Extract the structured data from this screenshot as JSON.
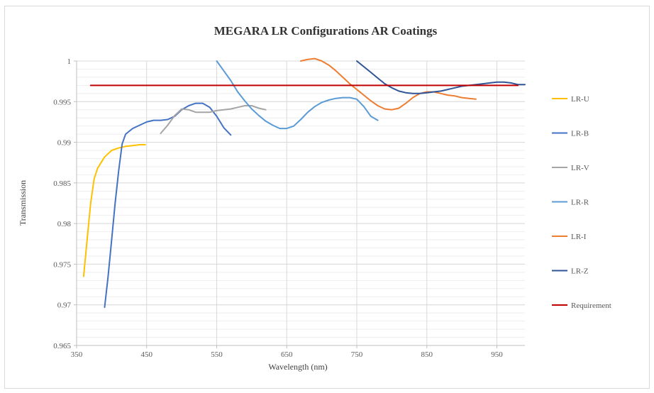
{
  "chart_data": {
    "type": "line",
    "title": "MEGARA LR Configurations AR Coatings",
    "xlabel": "Wavelength (nm)",
    "ylabel": "Transmission",
    "xlim": [
      350,
      990
    ],
    "ylim": [
      0.965,
      1.0
    ],
    "x_ticks": [
      "350",
      "450",
      "550",
      "650",
      "750",
      "850",
      "950"
    ],
    "y_ticks": [
      "0.965",
      "0.97",
      "0.975",
      "0.98",
      "0.985",
      "0.99",
      "0.995",
      "1"
    ],
    "grid": true,
    "legend_position": "right",
    "series": [
      {
        "name": "LR-U",
        "color": "#ffc000",
        "points": [
          [
            360,
            0.9735
          ],
          [
            365,
            0.978
          ],
          [
            370,
            0.9825
          ],
          [
            375,
            0.9855
          ],
          [
            380,
            0.9868
          ],
          [
            390,
            0.9882
          ],
          [
            400,
            0.989
          ],
          [
            410,
            0.9893
          ],
          [
            420,
            0.9895
          ],
          [
            430,
            0.9896
          ],
          [
            440,
            0.9897
          ],
          [
            448,
            0.9897
          ]
        ]
      },
      {
        "name": "LR-B",
        "color": "#4472c4",
        "points": [
          [
            390,
            0.9697
          ],
          [
            395,
            0.9735
          ],
          [
            400,
            0.978
          ],
          [
            405,
            0.9825
          ],
          [
            410,
            0.9865
          ],
          [
            415,
            0.9898
          ],
          [
            420,
            0.991
          ],
          [
            430,
            0.9917
          ],
          [
            440,
            0.9921
          ],
          [
            450,
            0.9925
          ],
          [
            460,
            0.9927
          ],
          [
            470,
            0.9927
          ],
          [
            480,
            0.9928
          ],
          [
            490,
            0.9932
          ],
          [
            500,
            0.994
          ],
          [
            510,
            0.9945
          ],
          [
            520,
            0.9948
          ],
          [
            530,
            0.9948
          ],
          [
            540,
            0.9943
          ],
          [
            550,
            0.9932
          ],
          [
            560,
            0.9918
          ],
          [
            570,
            0.9909
          ]
        ]
      },
      {
        "name": "LR-V",
        "color": "#a5a5a5",
        "points": [
          [
            470,
            0.9911
          ],
          [
            480,
            0.9921
          ],
          [
            490,
            0.9933
          ],
          [
            500,
            0.9941
          ],
          [
            510,
            0.994
          ],
          [
            520,
            0.9937
          ],
          [
            530,
            0.9937
          ],
          [
            540,
            0.9937
          ],
          [
            550,
            0.9939
          ],
          [
            560,
            0.994
          ],
          [
            570,
            0.9941
          ],
          [
            580,
            0.9943
          ],
          [
            590,
            0.9945
          ],
          [
            600,
            0.9945
          ],
          [
            610,
            0.9942
          ],
          [
            620,
            0.994
          ]
        ]
      },
      {
        "name": "LR-R",
        "color": "#5b9bd5",
        "points": [
          [
            550,
            1.0
          ],
          [
            560,
            0.9988
          ],
          [
            570,
            0.9976
          ],
          [
            580,
            0.9962
          ],
          [
            590,
            0.9951
          ],
          [
            600,
            0.9941
          ],
          [
            610,
            0.9933
          ],
          [
            620,
            0.9926
          ],
          [
            630,
            0.9921
          ],
          [
            640,
            0.9917
          ],
          [
            650,
            0.9917
          ],
          [
            660,
            0.992
          ],
          [
            670,
            0.9928
          ],
          [
            680,
            0.9937
          ],
          [
            690,
            0.9944
          ],
          [
            700,
            0.9949
          ],
          [
            710,
            0.9952
          ],
          [
            720,
            0.9954
          ],
          [
            730,
            0.9955
          ],
          [
            740,
            0.9955
          ],
          [
            750,
            0.9953
          ],
          [
            760,
            0.9944
          ],
          [
            770,
            0.9932
          ],
          [
            780,
            0.9927
          ]
        ]
      },
      {
        "name": "LR-I",
        "color": "#ed7d31",
        "points": [
          [
            670,
            1.0
          ],
          [
            680,
            1.0002
          ],
          [
            690,
            1.0003
          ],
          [
            700,
            1.0
          ],
          [
            710,
            0.9995
          ],
          [
            720,
            0.9988
          ],
          [
            730,
            0.998
          ],
          [
            740,
            0.9972
          ],
          [
            750,
            0.9965
          ],
          [
            760,
            0.9958
          ],
          [
            770,
            0.9951
          ],
          [
            780,
            0.9945
          ],
          [
            790,
            0.9941
          ],
          [
            800,
            0.994
          ],
          [
            810,
            0.9942
          ],
          [
            820,
            0.9948
          ],
          [
            830,
            0.9955
          ],
          [
            840,
            0.996
          ],
          [
            850,
            0.9962
          ],
          [
            860,
            0.9962
          ],
          [
            870,
            0.996
          ],
          [
            880,
            0.9958
          ],
          [
            890,
            0.9957
          ],
          [
            900,
            0.9955
          ],
          [
            910,
            0.9954
          ],
          [
            920,
            0.9953
          ]
        ]
      },
      {
        "name": "LR-Z",
        "color": "#2f5597",
        "points": [
          [
            750,
            1.0
          ],
          [
            760,
            0.9993
          ],
          [
            770,
            0.9986
          ],
          [
            780,
            0.9979
          ],
          [
            790,
            0.9972
          ],
          [
            800,
            0.9967
          ],
          [
            810,
            0.9963
          ],
          [
            820,
            0.9961
          ],
          [
            830,
            0.996
          ],
          [
            840,
            0.996
          ],
          [
            850,
            0.9961
          ],
          [
            860,
            0.9962
          ],
          [
            870,
            0.9963
          ],
          [
            880,
            0.9965
          ],
          [
            890,
            0.9967
          ],
          [
            900,
            0.9969
          ],
          [
            910,
            0.997
          ],
          [
            920,
            0.9971
          ],
          [
            930,
            0.9972
          ],
          [
            940,
            0.9973
          ],
          [
            950,
            0.9974
          ],
          [
            960,
            0.9974
          ],
          [
            970,
            0.9973
          ],
          [
            980,
            0.9971
          ],
          [
            990,
            0.9971
          ]
        ]
      },
      {
        "name": "Requirement",
        "color": "#c00000",
        "points": [
          [
            370,
            0.997
          ],
          [
            980,
            0.997
          ]
        ]
      }
    ]
  }
}
